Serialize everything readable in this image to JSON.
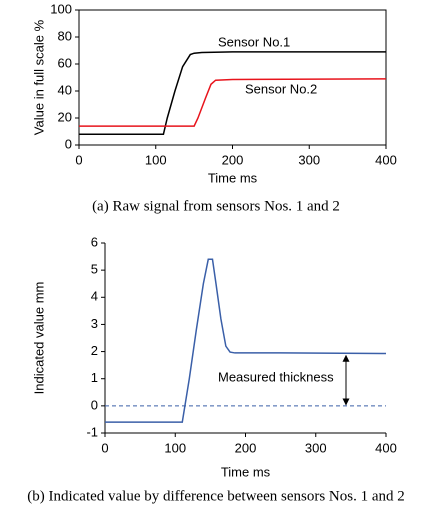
{
  "chart_data": [
    {
      "type": "line",
      "caption": "(a) Raw signal from sensors Nos. 1 and 2",
      "xlabel": "Time  ms",
      "ylabel": "Value in full scale  %",
      "xlim": [
        0,
        400
      ],
      "xticks": [
        0,
        100,
        200,
        300,
        400
      ],
      "ylim": [
        0,
        100
      ],
      "yticks": [
        0,
        20,
        40,
        60,
        80,
        100
      ],
      "frame": true,
      "series": [
        {
          "name": "Sensor No.1",
          "color": "#000000",
          "x": [
            0,
            110,
            115,
            125,
            135,
            145,
            150,
            160,
            200,
            400
          ],
          "values": [
            8,
            8,
            20,
            40,
            58,
            67,
            68,
            68.5,
            69,
            69
          ]
        },
        {
          "name": "Sensor No.2",
          "color": "#e8141c",
          "x": [
            0,
            150,
            155,
            165,
            172,
            178,
            200,
            400
          ],
          "values": [
            14,
            14,
            20,
            35,
            45,
            48,
            48.5,
            49
          ]
        }
      ]
    },
    {
      "type": "line",
      "caption": "(b) Indicated value by difference between sensors Nos. 1 and 2",
      "xlabel": "Time  ms",
      "ylabel": "Indicated value  mm",
      "xlim": [
        0,
        400
      ],
      "xticks": [
        0,
        100,
        200,
        300,
        400
      ],
      "ylim": [
        -1,
        6
      ],
      "yticks": [
        -1,
        0,
        1,
        2,
        3,
        4,
        5,
        6
      ],
      "frame": false,
      "reference_line": {
        "value": 0,
        "style": "dashed",
        "color": "#3a5fa8"
      },
      "annotations": [
        "Measured thickness"
      ],
      "series": [
        {
          "color": "#3a5fa8",
          "x": [
            0,
            110,
            120,
            130,
            140,
            147,
            153,
            158,
            165,
            172,
            178,
            185,
            250,
            400
          ],
          "values": [
            -0.6,
            -0.6,
            1.0,
            2.8,
            4.5,
            5.4,
            5.4,
            4.5,
            3.2,
            2.2,
            1.98,
            1.95,
            1.95,
            1.93
          ]
        }
      ]
    }
  ]
}
